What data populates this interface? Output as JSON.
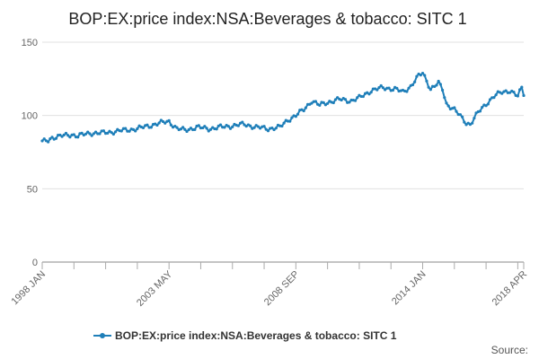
{
  "chart_data": {
    "type": "line",
    "title": "BOP:EX:price index:NSA:Beverages & tobacco: SITC 1",
    "xlabel": "",
    "ylabel": "",
    "ylim": [
      0,
      150
    ],
    "yticks": [
      0,
      50,
      100,
      150
    ],
    "x_tick_labels": [
      "1998 JAN",
      "2003 MAY",
      "2008 SEP",
      "2014 JAN",
      "2018 APR"
    ],
    "x_tick_indices": [
      0,
      64,
      128,
      192,
      243
    ],
    "grid": "horizontal",
    "legend_position": "bottom",
    "series": [
      {
        "name": "BOP:EX:price index:NSA:Beverages & tobacco: SITC 1",
        "color": "#1f7fb9",
        "start": "1998 JAN",
        "end": "2018 APR",
        "frequency": "monthly",
        "anchors": [
          [
            0,
            82
          ],
          [
            3,
            83
          ],
          [
            5,
            85
          ],
          [
            10,
            86
          ],
          [
            15,
            87
          ],
          [
            18,
            86
          ],
          [
            24,
            88
          ],
          [
            30,
            88
          ],
          [
            36,
            89
          ],
          [
            42,
            90
          ],
          [
            48,
            91
          ],
          [
            54,
            93
          ],
          [
            60,
            95
          ],
          [
            64,
            96
          ],
          [
            68,
            91
          ],
          [
            72,
            90
          ],
          [
            78,
            92
          ],
          [
            84,
            91
          ],
          [
            90,
            92
          ],
          [
            96,
            93
          ],
          [
            102,
            94
          ],
          [
            108,
            92
          ],
          [
            114,
            91
          ],
          [
            120,
            92
          ],
          [
            124,
            97
          ],
          [
            128,
            100
          ],
          [
            132,
            104
          ],
          [
            136,
            110
          ],
          [
            140,
            107
          ],
          [
            144,
            109
          ],
          [
            150,
            111
          ],
          [
            156,
            110
          ],
          [
            160,
            112
          ],
          [
            166,
            117
          ],
          [
            172,
            119
          ],
          [
            178,
            118
          ],
          [
            182,
            116
          ],
          [
            186,
            120
          ],
          [
            190,
            127
          ],
          [
            192,
            129
          ],
          [
            194,
            124
          ],
          [
            196,
            118
          ],
          [
            200,
            122
          ],
          [
            202,
            118
          ],
          [
            204,
            108
          ],
          [
            208,
            104
          ],
          [
            212,
            98
          ],
          [
            214,
            95
          ],
          [
            216,
            94
          ],
          [
            218,
            98
          ],
          [
            220,
            102
          ],
          [
            224,
            108
          ],
          [
            228,
            113
          ],
          [
            232,
            116
          ],
          [
            236,
            117
          ],
          [
            240,
            113
          ],
          [
            242,
            119
          ],
          [
            243,
            115
          ]
        ]
      }
    ]
  },
  "source_label": "Source:"
}
